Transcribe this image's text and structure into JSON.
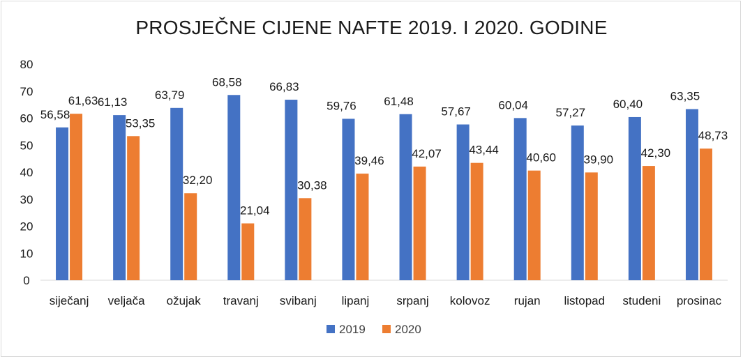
{
  "chart_data": {
    "type": "bar",
    "title": "PROSJEČNE CIJENE NAFTE 2019. I 2020. GODINE",
    "xlabel": "",
    "ylabel": "",
    "ylim": [
      0,
      80
    ],
    "yticks": [
      "0",
      "10",
      "20",
      "30",
      "40",
      "50",
      "60",
      "70",
      "80"
    ],
    "grid": false,
    "legend_position": "bottom",
    "categories": [
      "siječanj",
      "veljača",
      "ožujak",
      "travanj",
      "svibanj",
      "lipanj",
      "srpanj",
      "kolovoz",
      "rujan",
      "listopad",
      "studeni",
      "prosinac"
    ],
    "series": [
      {
        "name": "2019",
        "color": "#4472c4",
        "values": [
          56.58,
          61.13,
          63.79,
          68.58,
          66.83,
          59.76,
          61.48,
          57.67,
          60.04,
          57.27,
          60.4,
          63.35
        ],
        "labels": [
          "56,58",
          "61,13",
          "63,79",
          "68,58",
          "66,83",
          "59,76",
          "61,48",
          "57,67",
          "60,04",
          "57,27",
          "60,40",
          "63,35"
        ]
      },
      {
        "name": "2020",
        "color": "#ed7d31",
        "values": [
          61.63,
          53.35,
          32.2,
          21.04,
          30.38,
          39.46,
          42.07,
          43.44,
          40.6,
          39.9,
          42.3,
          48.73
        ],
        "labels": [
          "61,63",
          "53,35",
          "32,20",
          "21,04",
          "30,38",
          "39,46",
          "42,07",
          "43,44",
          "40,60",
          "39,90",
          "42,30",
          "48,73"
        ]
      }
    ]
  }
}
